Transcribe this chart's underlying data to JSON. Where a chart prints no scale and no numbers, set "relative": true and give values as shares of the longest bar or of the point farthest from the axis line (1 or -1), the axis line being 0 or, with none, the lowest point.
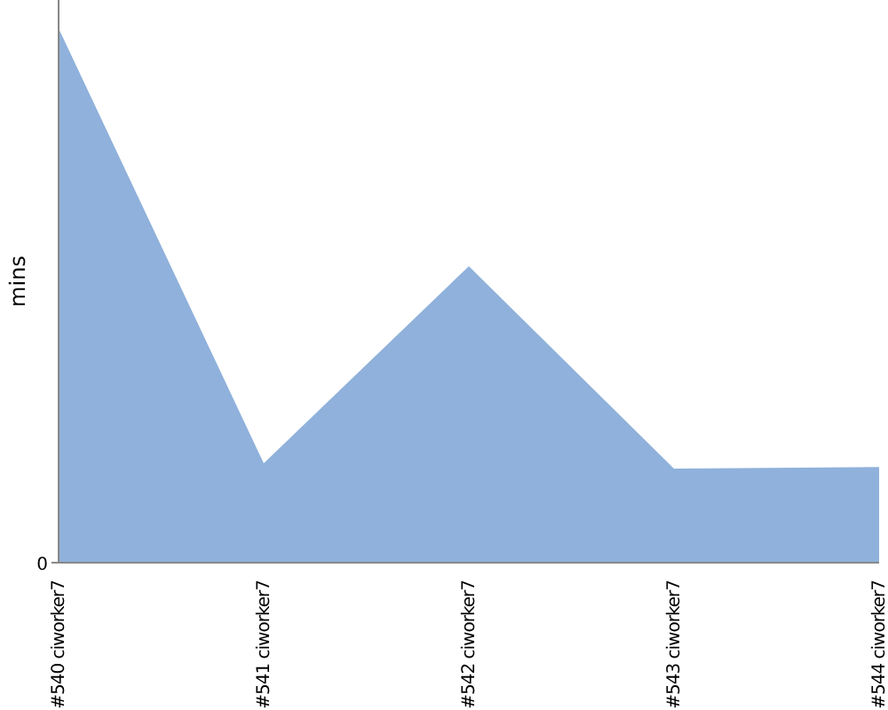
{
  "chart_data": {
    "type": "area",
    "relative": true,
    "ylabel": "mins",
    "categories": [
      "#540 ciworker7",
      "#541 ciworker7",
      "#542 ciworker7",
      "#543 ciworker7",
      "#544 ciworker7"
    ],
    "series": [
      {
        "color": "#8fb1db",
        "values": [
          1,
          0.186,
          0.555,
          0.176,
          0.179
        ]
      }
    ],
    "annotations": [
      "0"
    ]
  }
}
